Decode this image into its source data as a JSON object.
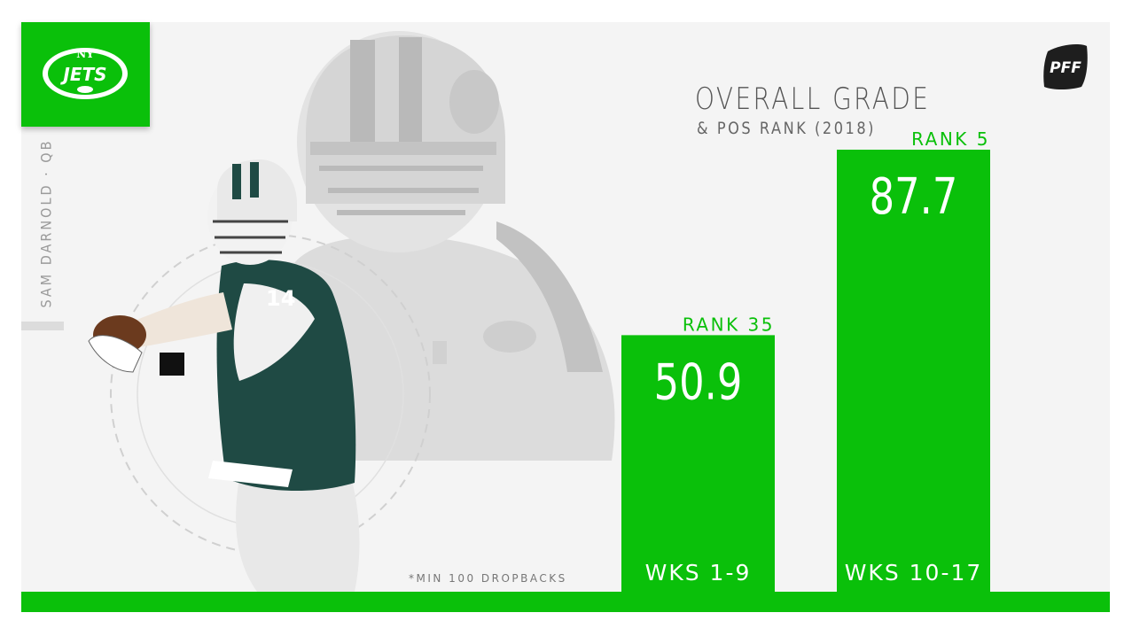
{
  "team": {
    "logo_text": "JETS",
    "monogram": "NY"
  },
  "player": {
    "label": "SAM DARNOLD · QB",
    "jersey_number": "14"
  },
  "brand": {
    "logo_text": "PFF"
  },
  "footnote": "*MIN 100 DROPBACKS",
  "colors": {
    "accent": "#0ac00a",
    "panel": "#f4f4f4",
    "jets_green": "#125740"
  },
  "chart_data": {
    "type": "bar",
    "title": "OVERALL GRADE",
    "subtitle": "& POS RANK (2018)",
    "categories": [
      "WKS 1-9",
      "WKS 10-17"
    ],
    "values": [
      50.9,
      87.7
    ],
    "value_labels": [
      "50.9",
      "87.7"
    ],
    "rank_labels": [
      "RANK 35",
      "RANK 5"
    ],
    "ylim": [
      0,
      100
    ],
    "grid": false,
    "legend": "none"
  }
}
